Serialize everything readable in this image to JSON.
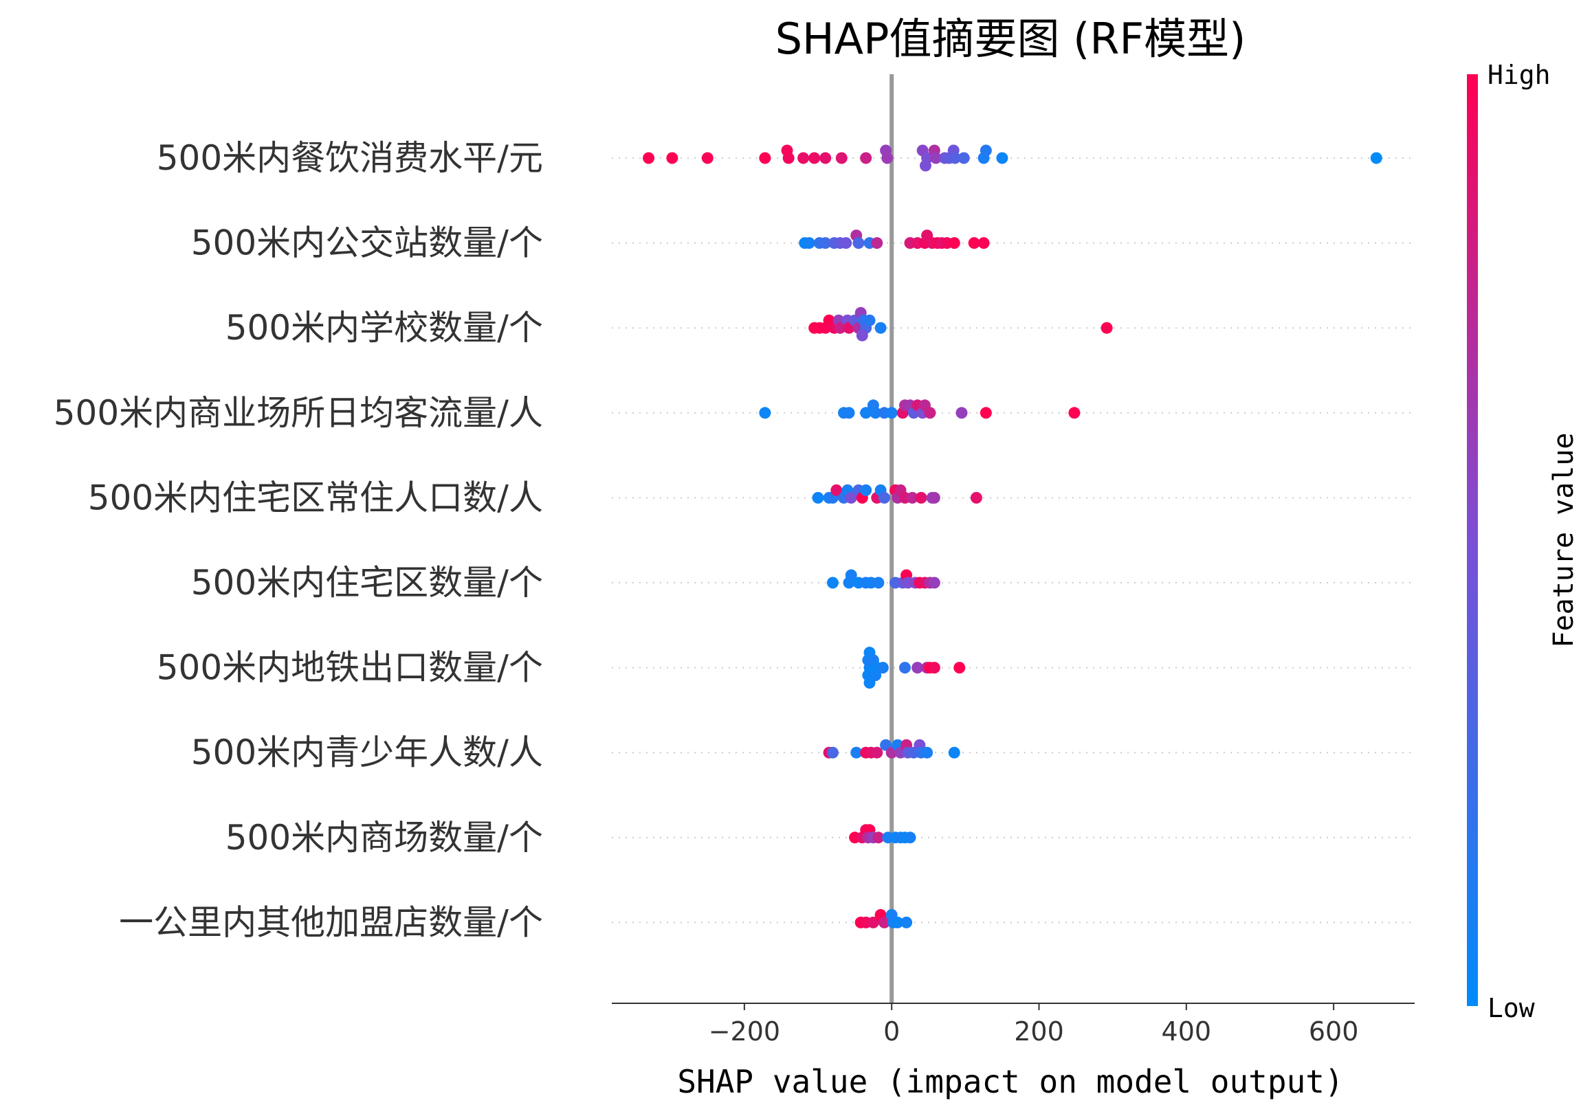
{
  "chart_data": {
    "type": "scatter",
    "subtype": "shap-beeswarm",
    "title": "SHAP值摘要图 (RF模型)",
    "xlabel": "SHAP value (impact on model output)",
    "ylabel": "",
    "xlim": [
      -380,
      710
    ],
    "xticks": [
      -200,
      0,
      200,
      400,
      600
    ],
    "xtick_labels": [
      "−200",
      "0",
      "200",
      "400",
      "600"
    ],
    "grid": "horizontal dotted",
    "colorbar": {
      "title": "Feature value",
      "high_label": "High",
      "low_label": "Low",
      "high_color": "#ff0052",
      "mid_color": "#7b4fd6",
      "low_color": "#008bfb"
    },
    "features": [
      {
        "name": "500米内餐饮消费水平/元",
        "points": [
          {
            "x": -330,
            "v": 1.0,
            "o": 0
          },
          {
            "x": -298,
            "v": 1.0,
            "o": 0
          },
          {
            "x": -250,
            "v": 0.98,
            "o": 0
          },
          {
            "x": -172,
            "v": 1.0,
            "o": 0
          },
          {
            "x": -142,
            "v": 0.97,
            "o": 1
          },
          {
            "x": -140,
            "v": 0.96,
            "o": 0
          },
          {
            "x": -120,
            "v": 0.92,
            "o": 0
          },
          {
            "x": -105,
            "v": 0.93,
            "o": 0
          },
          {
            "x": -90,
            "v": 0.9,
            "o": 0
          },
          {
            "x": -68,
            "v": 0.88,
            "o": 0
          },
          {
            "x": -35,
            "v": 0.8,
            "o": 0
          },
          {
            "x": -8,
            "v": 0.6,
            "o": 1
          },
          {
            "x": -6,
            "v": 0.62,
            "o": 0
          },
          {
            "x": 42,
            "v": 0.55,
            "o": 1
          },
          {
            "x": 48,
            "v": 0.5,
            "o": 0
          },
          {
            "x": 58,
            "v": 0.7,
            "o": 1
          },
          {
            "x": 60,
            "v": 0.6,
            "o": 0
          },
          {
            "x": 72,
            "v": 0.45,
            "o": 0
          },
          {
            "x": 78,
            "v": 0.4,
            "o": 0
          },
          {
            "x": 84,
            "v": 0.45,
            "o": 1
          },
          {
            "x": 86,
            "v": 0.35,
            "o": 0
          },
          {
            "x": 98,
            "v": 0.3,
            "o": 0
          },
          {
            "x": 125,
            "v": 0.1,
            "o": 0
          },
          {
            "x": 128,
            "v": 0.15,
            "o": 1
          },
          {
            "x": 150,
            "v": 0.05,
            "o": 0
          },
          {
            "x": 46,
            "v": 0.5,
            "o": -1
          },
          {
            "x": 658,
            "v": 0.0,
            "o": 0
          }
        ]
      },
      {
        "name": "500米内公交站数量/个",
        "points": [
          {
            "x": -118,
            "v": 0.05,
            "o": 0
          },
          {
            "x": -112,
            "v": 0.08,
            "o": 0
          },
          {
            "x": -98,
            "v": 0.2,
            "o": 0
          },
          {
            "x": -90,
            "v": 0.25,
            "o": 0
          },
          {
            "x": -78,
            "v": 0.35,
            "o": 0
          },
          {
            "x": -70,
            "v": 0.4,
            "o": 0
          },
          {
            "x": -62,
            "v": 0.45,
            "o": 0
          },
          {
            "x": -48,
            "v": 0.7,
            "o": 1
          },
          {
            "x": -45,
            "v": 0.3,
            "o": 0
          },
          {
            "x": -30,
            "v": 0.2,
            "o": 0
          },
          {
            "x": -20,
            "v": 0.75,
            "o": 0
          },
          {
            "x": 25,
            "v": 0.85,
            "o": 0
          },
          {
            "x": 35,
            "v": 0.9,
            "o": 0
          },
          {
            "x": 45,
            "v": 0.95,
            "o": 0
          },
          {
            "x": 48,
            "v": 0.9,
            "o": 1
          },
          {
            "x": 55,
            "v": 0.9,
            "o": 0
          },
          {
            "x": 62,
            "v": 0.95,
            "o": 0
          },
          {
            "x": 68,
            "v": 0.9,
            "o": 0
          },
          {
            "x": 75,
            "v": 0.95,
            "o": 0
          },
          {
            "x": 85,
            "v": 1.0,
            "o": 0
          },
          {
            "x": 112,
            "v": 1.0,
            "o": 0
          },
          {
            "x": 125,
            "v": 0.98,
            "o": 0
          }
        ]
      },
      {
        "name": "500米内学校数量/个",
        "points": [
          {
            "x": -105,
            "v": 1.0,
            "o": 0
          },
          {
            "x": -98,
            "v": 1.0,
            "o": 0
          },
          {
            "x": -90,
            "v": 0.98,
            "o": 0
          },
          {
            "x": -85,
            "v": 1.0,
            "o": 1
          },
          {
            "x": -78,
            "v": 0.95,
            "o": 0
          },
          {
            "x": -72,
            "v": 0.6,
            "o": 1
          },
          {
            "x": -70,
            "v": 0.8,
            "o": 0
          },
          {
            "x": -60,
            "v": 0.5,
            "o": 1
          },
          {
            "x": -58,
            "v": 0.9,
            "o": 0
          },
          {
            "x": -50,
            "v": 0.4,
            "o": 1
          },
          {
            "x": -45,
            "v": 0.7,
            "o": 0
          },
          {
            "x": -42,
            "v": 0.6,
            "o": 2
          },
          {
            "x": -38,
            "v": 0.2,
            "o": 1
          },
          {
            "x": -35,
            "v": 0.3,
            "o": 0
          },
          {
            "x": -40,
            "v": 0.5,
            "o": -1
          },
          {
            "x": -30,
            "v": 0.15,
            "o": 1
          },
          {
            "x": -15,
            "v": 0.1,
            "o": 0
          },
          {
            "x": 292,
            "v": 1.0,
            "o": 0
          }
        ]
      },
      {
        "name": "500米内商业场所日均客流量/人",
        "points": [
          {
            "x": -172,
            "v": 0.05,
            "o": 0
          },
          {
            "x": -65,
            "v": 0.1,
            "o": 0
          },
          {
            "x": -58,
            "v": 0.1,
            "o": 0
          },
          {
            "x": -35,
            "v": 0.08,
            "o": 0
          },
          {
            "x": -25,
            "v": 0.12,
            "o": 1
          },
          {
            "x": -22,
            "v": 0.1,
            "o": 0
          },
          {
            "x": -10,
            "v": 0.15,
            "o": 0
          },
          {
            "x": 0,
            "v": 0.1,
            "o": 0
          },
          {
            "x": 15,
            "v": 0.9,
            "o": 0
          },
          {
            "x": 18,
            "v": 0.7,
            "o": 1
          },
          {
            "x": 25,
            "v": 0.65,
            "o": 1
          },
          {
            "x": 30,
            "v": 0.4,
            "o": 0
          },
          {
            "x": 35,
            "v": 0.85,
            "o": 1
          },
          {
            "x": 42,
            "v": 0.5,
            "o": 0
          },
          {
            "x": 45,
            "v": 0.75,
            "o": 1
          },
          {
            "x": 52,
            "v": 0.8,
            "o": 0
          },
          {
            "x": 95,
            "v": 0.6,
            "o": 0
          },
          {
            "x": 128,
            "v": 1.0,
            "o": 0
          },
          {
            "x": 248,
            "v": 1.0,
            "o": 0
          }
        ]
      },
      {
        "name": "500米内住宅区常住人口数/人",
        "points": [
          {
            "x": -100,
            "v": 0.05,
            "o": 0
          },
          {
            "x": -85,
            "v": 0.1,
            "o": 0
          },
          {
            "x": -80,
            "v": 0.15,
            "o": 0
          },
          {
            "x": -75,
            "v": 0.9,
            "o": 1
          },
          {
            "x": -65,
            "v": 0.2,
            "o": 0
          },
          {
            "x": -60,
            "v": 0.1,
            "o": 1
          },
          {
            "x": -55,
            "v": 0.5,
            "o": 0
          },
          {
            "x": -45,
            "v": 0.3,
            "o": 1
          },
          {
            "x": -40,
            "v": 1.0,
            "o": 0
          },
          {
            "x": -35,
            "v": 0.1,
            "o": 1
          },
          {
            "x": -20,
            "v": 0.9,
            "o": 0
          },
          {
            "x": -15,
            "v": 0.1,
            "o": 1
          },
          {
            "x": -10,
            "v": 0.3,
            "o": 0
          },
          {
            "x": 5,
            "v": 0.95,
            "o": 1
          },
          {
            "x": 8,
            "v": 0.7,
            "o": 0
          },
          {
            "x": 12,
            "v": 0.8,
            "o": 1
          },
          {
            "x": 18,
            "v": 0.85,
            "o": 0
          },
          {
            "x": 28,
            "v": 0.75,
            "o": 0
          },
          {
            "x": 40,
            "v": 0.9,
            "o": 0
          },
          {
            "x": 55,
            "v": 0.6,
            "o": 0
          },
          {
            "x": 58,
            "v": 0.65,
            "o": 0
          },
          {
            "x": 115,
            "v": 0.9,
            "o": 0
          }
        ]
      },
      {
        "name": "500米内住宅区数量/个",
        "points": [
          {
            "x": -80,
            "v": 0.05,
            "o": 0
          },
          {
            "x": -55,
            "v": 0.1,
            "o": 1
          },
          {
            "x": -58,
            "v": 0.08,
            "o": 0
          },
          {
            "x": -45,
            "v": 0.05,
            "o": 0
          },
          {
            "x": -35,
            "v": 0.1,
            "o": 0
          },
          {
            "x": -28,
            "v": 0.08,
            "o": 0
          },
          {
            "x": -18,
            "v": 0.1,
            "o": 0
          },
          {
            "x": 5,
            "v": 0.3,
            "o": 0
          },
          {
            "x": 15,
            "v": 0.4,
            "o": 0
          },
          {
            "x": 20,
            "v": 1.0,
            "o": 1
          },
          {
            "x": 22,
            "v": 0.5,
            "o": 0
          },
          {
            "x": 32,
            "v": 0.55,
            "o": 0
          },
          {
            "x": 38,
            "v": 0.95,
            "o": 0
          },
          {
            "x": 45,
            "v": 0.9,
            "o": 0
          },
          {
            "x": 52,
            "v": 0.7,
            "o": 0
          },
          {
            "x": 58,
            "v": 0.6,
            "o": 0
          }
        ]
      },
      {
        "name": "500米内地铁出口数量/个",
        "points": [
          {
            "x": -30,
            "v": 0.05,
            "o": -2
          },
          {
            "x": -32,
            "v": 0.05,
            "o": -1
          },
          {
            "x": -30,
            "v": 0.05,
            "o": 0
          },
          {
            "x": -32,
            "v": 0.08,
            "o": 1
          },
          {
            "x": -30,
            "v": 0.05,
            "o": 2
          },
          {
            "x": -25,
            "v": 0.1,
            "o": 1
          },
          {
            "x": -22,
            "v": 0.08,
            "o": -1
          },
          {
            "x": -20,
            "v": 0.05,
            "o": 0
          },
          {
            "x": -12,
            "v": 0.1,
            "o": 0
          },
          {
            "x": 18,
            "v": 0.2,
            "o": 0
          },
          {
            "x": 35,
            "v": 0.6,
            "o": 0
          },
          {
            "x": 48,
            "v": 0.7,
            "o": 0
          },
          {
            "x": 52,
            "v": 1.0,
            "o": 0
          },
          {
            "x": 58,
            "v": 0.95,
            "o": 0
          },
          {
            "x": 92,
            "v": 1.0,
            "o": 0
          }
        ]
      },
      {
        "name": "500米内青少年人数/人",
        "points": [
          {
            "x": -85,
            "v": 0.9,
            "o": 0
          },
          {
            "x": -80,
            "v": 0.3,
            "o": 0
          },
          {
            "x": -48,
            "v": 0.1,
            "o": 0
          },
          {
            "x": -35,
            "v": 0.95,
            "o": 0
          },
          {
            "x": -28,
            "v": 0.9,
            "o": 0
          },
          {
            "x": -20,
            "v": 0.85,
            "o": 0
          },
          {
            "x": -8,
            "v": 0.2,
            "o": 1
          },
          {
            "x": 0,
            "v": 0.7,
            "o": 0
          },
          {
            "x": 8,
            "v": 0.1,
            "o": 1
          },
          {
            "x": 12,
            "v": 0.6,
            "o": 0
          },
          {
            "x": 20,
            "v": 0.8,
            "o": 1
          },
          {
            "x": 22,
            "v": 0.4,
            "o": 0
          },
          {
            "x": 30,
            "v": 0.3,
            "o": 0
          },
          {
            "x": 38,
            "v": 0.5,
            "o": 1
          },
          {
            "x": 40,
            "v": 0.2,
            "o": 0
          },
          {
            "x": 48,
            "v": 0.1,
            "o": 0
          },
          {
            "x": 85,
            "v": 0.05,
            "o": 0
          }
        ]
      },
      {
        "name": "500米内商场数量/个",
        "points": [
          {
            "x": -50,
            "v": 1.0,
            "o": 0
          },
          {
            "x": -40,
            "v": 0.9,
            "o": 0
          },
          {
            "x": -35,
            "v": 0.95,
            "o": 1
          },
          {
            "x": -30,
            "v": 1.0,
            "o": 1
          },
          {
            "x": -32,
            "v": 0.7,
            "o": 0
          },
          {
            "x": -25,
            "v": 0.6,
            "o": 0
          },
          {
            "x": -18,
            "v": 0.8,
            "o": 0
          },
          {
            "x": -5,
            "v": 0.1,
            "o": 0
          },
          {
            "x": 5,
            "v": 0.05,
            "o": 0
          },
          {
            "x": 12,
            "v": 0.1,
            "o": 0
          },
          {
            "x": 18,
            "v": 0.05,
            "o": 0
          },
          {
            "x": 25,
            "v": 0.08,
            "o": 0
          }
        ]
      },
      {
        "name": "一公里内其他加盟店数量/个",
        "points": [
          {
            "x": -42,
            "v": 1.0,
            "o": 0
          },
          {
            "x": -35,
            "v": 0.95,
            "o": 0
          },
          {
            "x": -25,
            "v": 0.9,
            "o": 0
          },
          {
            "x": -15,
            "v": 1.0,
            "o": 1
          },
          {
            "x": -10,
            "v": 0.8,
            "o": 0
          },
          {
            "x": 0,
            "v": 0.1,
            "o": 1
          },
          {
            "x": 2,
            "v": 0.1,
            "o": 0
          },
          {
            "x": 8,
            "v": 0.05,
            "o": 0
          },
          {
            "x": 20,
            "v": 0.08,
            "o": 0
          }
        ]
      }
    ]
  }
}
